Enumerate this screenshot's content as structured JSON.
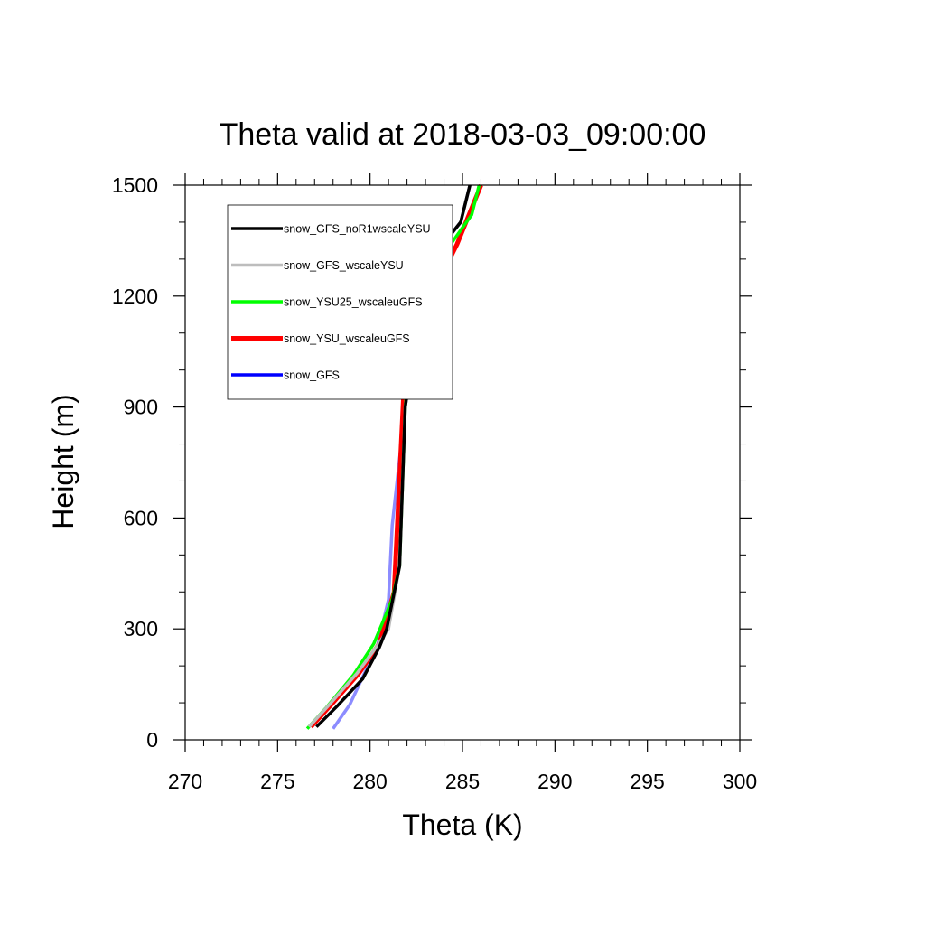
{
  "chart_data": {
    "type": "line",
    "title": "Theta valid at 2018-03-03_09:00:00",
    "xlabel": "Theta (K)",
    "ylabel": "Height (m)",
    "xlim": [
      270,
      300
    ],
    "ylim": [
      0,
      1500
    ],
    "xticks": [
      270,
      275,
      280,
      285,
      290,
      295,
      300
    ],
    "yticks": [
      0,
      300,
      600,
      900,
      1200,
      1500
    ],
    "xtick_labels": [
      "270",
      "275",
      "280",
      "285",
      "290",
      "295",
      "300"
    ],
    "ytick_labels": [
      "0",
      "300",
      "600",
      "900",
      "1200",
      "1500"
    ],
    "legend_position": "top-left inside plot",
    "grid": false,
    "series": [
      {
        "name": "snow_GFS_noR1wscaleYSU",
        "color": "#000000",
        "width": 3.5,
        "x": [
          277.1,
          278.2,
          279.6,
          280.5,
          280.9,
          281.6,
          281.9,
          282.6,
          283.3,
          284.9,
          285.4
        ],
        "y": [
          35,
          90,
          165,
          250,
          300,
          470,
          900,
          1130,
          1300,
          1400,
          1500
        ]
      },
      {
        "name": "snow_GFS_wscaleYSU",
        "color": "#bdbdbd",
        "width": 3.5,
        "x": [
          276.7,
          277.8,
          279.3,
          280.4,
          281.0,
          281.6,
          281.9,
          282.6,
          283.3,
          284.9,
          285.4
        ],
        "y": [
          35,
          95,
          180,
          255,
          300,
          470,
          900,
          1130,
          1300,
          1400,
          1500
        ]
      },
      {
        "name": "snow_YSU25_wscaleuGFS",
        "color": "#00ff00",
        "width": 3.5,
        "x": [
          276.6,
          277.6,
          279.1,
          280.2,
          281.2,
          281.6,
          281.9,
          282.3,
          283.0,
          284.5,
          285.5,
          285.9
        ],
        "y": [
          30,
          85,
          175,
          260,
          380,
          470,
          900,
          1110,
          1250,
          1350,
          1420,
          1500
        ]
      },
      {
        "name": "snow_YSU_wscaleuGFS",
        "color": "#ff0000",
        "width": 5,
        "x": [
          276.8,
          277.9,
          279.4,
          280.5,
          281.3,
          281.8,
          282.5,
          283.5,
          284.7,
          286.0
        ],
        "y": [
          35,
          95,
          180,
          260,
          400,
          920,
          1130,
          1220,
          1340,
          1500
        ]
      },
      {
        "name": "snow_GFS",
        "color": "#0000ff",
        "width": 3.5,
        "x": [
          278.0,
          278.9,
          279.7,
          280.4,
          281.0,
          281.2,
          281.9,
          282.6,
          283.3,
          284.9,
          285.4
        ],
        "y": [
          30,
          95,
          180,
          255,
          380,
          580,
          900,
          1130,
          1300,
          1400,
          1500
        ]
      }
    ]
  }
}
